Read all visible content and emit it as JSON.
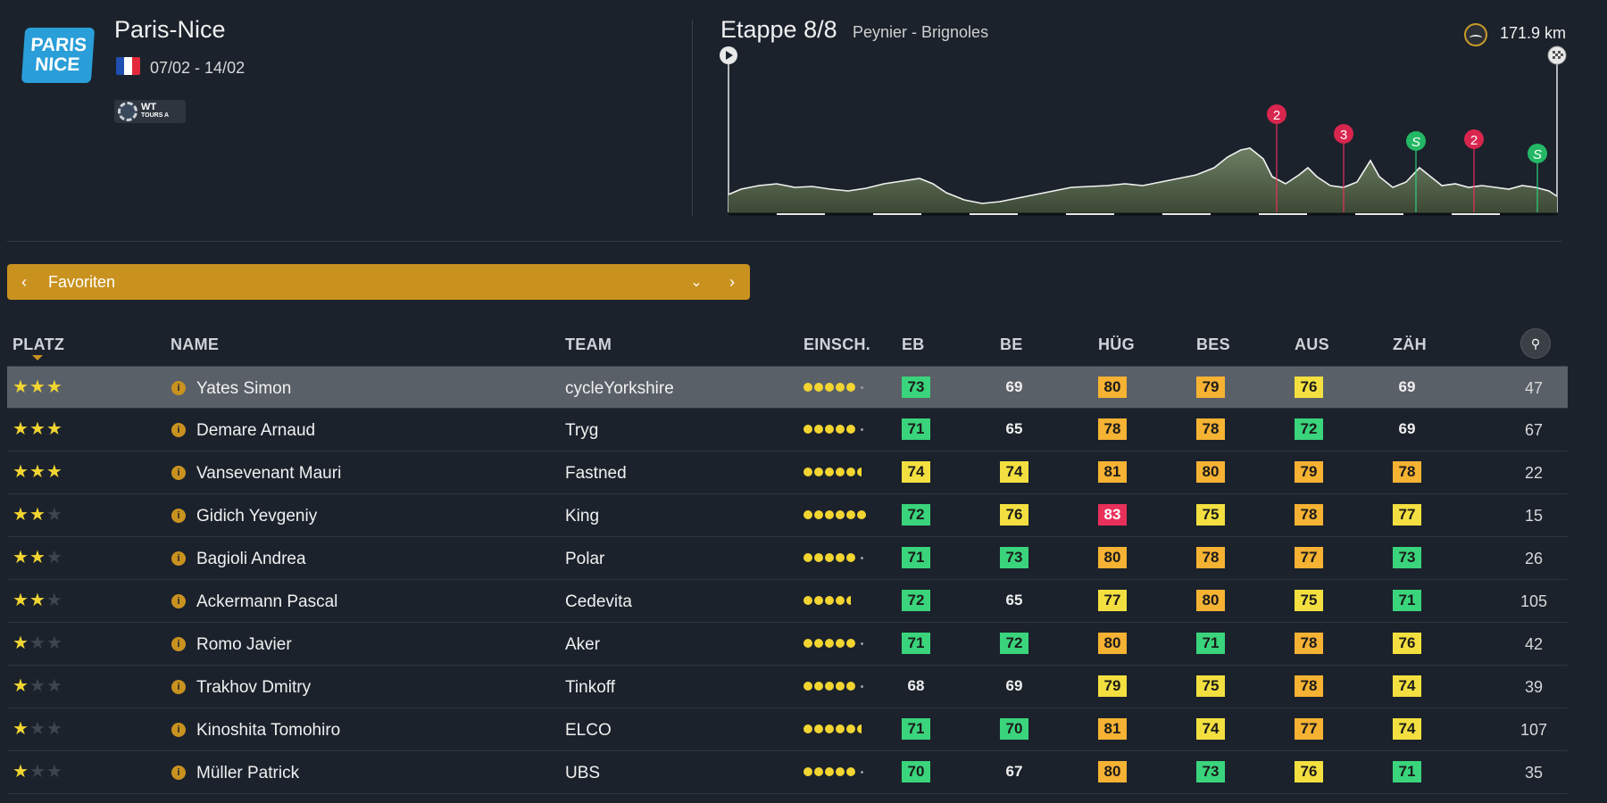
{
  "race": {
    "logo_line1": "PARIS",
    "logo_line2": "NICE",
    "title": "Paris-Nice",
    "dates": "07/02 - 14/02",
    "badge_main": "WT",
    "badge_sub": "TOURS A"
  },
  "stage": {
    "title": "Etappe 8/8",
    "route": "Peynier - Brignoles",
    "distance": "171.9 km",
    "markers": [
      {
        "label": "2",
        "type": "climb"
      },
      {
        "label": "3",
        "type": "climb"
      },
      {
        "label": "S",
        "type": "sprint"
      },
      {
        "label": "2",
        "type": "climb"
      },
      {
        "label": "S",
        "type": "sprint"
      }
    ]
  },
  "selector": {
    "prev": "‹",
    "label": "Favoriten",
    "dropdown": "⌄",
    "next": "›"
  },
  "columns": {
    "platz": "PLATZ",
    "name": "NAME",
    "team": "TEAM",
    "einsch": "EINSCH.",
    "eb": "EB",
    "be": "BE",
    "hug": "HÜG",
    "bes": "BES",
    "aus": "AUS",
    "zah": "ZÄH"
  },
  "colors": {
    "accent": "#c9921f",
    "green": "#3ad47c",
    "yellow": "#f3e040",
    "orange": "#f5b233",
    "red": "#e8305a"
  },
  "riders": [
    {
      "stars": 3,
      "name": "Yates Simon",
      "team": "cycleYorkshire",
      "dots": 5,
      "half": false,
      "stats": [
        {
          "v": "73",
          "c": "green"
        },
        {
          "v": "69",
          "c": "plain"
        },
        {
          "v": "80",
          "c": "orange"
        },
        {
          "v": "79",
          "c": "orange"
        },
        {
          "v": "76",
          "c": "yellow"
        },
        {
          "v": "69",
          "c": "plain"
        }
      ],
      "fav": "47"
    },
    {
      "stars": 3,
      "name": "Demare Arnaud",
      "team": "Tryg",
      "dots": 5,
      "half": false,
      "stats": [
        {
          "v": "71",
          "c": "green"
        },
        {
          "v": "65",
          "c": "plain"
        },
        {
          "v": "78",
          "c": "orange"
        },
        {
          "v": "78",
          "c": "orange"
        },
        {
          "v": "72",
          "c": "green"
        },
        {
          "v": "69",
          "c": "plain"
        }
      ],
      "fav": "67"
    },
    {
      "stars": 3,
      "name": "Vansevenant Mauri",
      "team": "Fastned",
      "dots": 5,
      "half": true,
      "stats": [
        {
          "v": "74",
          "c": "yellow"
        },
        {
          "v": "74",
          "c": "yellow"
        },
        {
          "v": "81",
          "c": "orange"
        },
        {
          "v": "80",
          "c": "orange"
        },
        {
          "v": "79",
          "c": "orange"
        },
        {
          "v": "78",
          "c": "orange"
        }
      ],
      "fav": "22"
    },
    {
      "stars": 2,
      "name": "Gidich Yevgeniy",
      "team": "King",
      "dots": 6,
      "half": false,
      "stats": [
        {
          "v": "72",
          "c": "green"
        },
        {
          "v": "76",
          "c": "yellow"
        },
        {
          "v": "83",
          "c": "red"
        },
        {
          "v": "75",
          "c": "yellow"
        },
        {
          "v": "78",
          "c": "orange"
        },
        {
          "v": "77",
          "c": "yellow"
        }
      ],
      "fav": "15"
    },
    {
      "stars": 2,
      "name": "Bagioli Andrea",
      "team": "Polar",
      "dots": 5,
      "half": false,
      "stats": [
        {
          "v": "71",
          "c": "green"
        },
        {
          "v": "73",
          "c": "green"
        },
        {
          "v": "80",
          "c": "orange"
        },
        {
          "v": "78",
          "c": "orange"
        },
        {
          "v": "77",
          "c": "orange"
        },
        {
          "v": "73",
          "c": "green"
        }
      ],
      "fav": "26"
    },
    {
      "stars": 2,
      "name": "Ackermann Pascal",
      "team": "Cedevita",
      "dots": 4,
      "half": true,
      "stats": [
        {
          "v": "72",
          "c": "green"
        },
        {
          "v": "65",
          "c": "plain"
        },
        {
          "v": "77",
          "c": "yellow"
        },
        {
          "v": "80",
          "c": "orange"
        },
        {
          "v": "75",
          "c": "yellow"
        },
        {
          "v": "71",
          "c": "green"
        }
      ],
      "fav": "105"
    },
    {
      "stars": 1,
      "name": "Romo Javier",
      "team": "Aker",
      "dots": 5,
      "half": false,
      "stats": [
        {
          "v": "71",
          "c": "green"
        },
        {
          "v": "72",
          "c": "green"
        },
        {
          "v": "80",
          "c": "orange"
        },
        {
          "v": "71",
          "c": "green"
        },
        {
          "v": "78",
          "c": "orange"
        },
        {
          "v": "76",
          "c": "yellow"
        }
      ],
      "fav": "42"
    },
    {
      "stars": 1,
      "name": "Trakhov Dmitry",
      "team": "Tinkoff",
      "dots": 5,
      "half": false,
      "stats": [
        {
          "v": "68",
          "c": "plain"
        },
        {
          "v": "69",
          "c": "plain"
        },
        {
          "v": "79",
          "c": "yellow"
        },
        {
          "v": "75",
          "c": "yellow"
        },
        {
          "v": "78",
          "c": "orange"
        },
        {
          "v": "74",
          "c": "yellow"
        }
      ],
      "fav": "39"
    },
    {
      "stars": 1,
      "name": "Kinoshita Tomohiro",
      "team": "ELCO",
      "dots": 5,
      "half": true,
      "stats": [
        {
          "v": "71",
          "c": "green"
        },
        {
          "v": "70",
          "c": "green"
        },
        {
          "v": "81",
          "c": "orange"
        },
        {
          "v": "74",
          "c": "yellow"
        },
        {
          "v": "77",
          "c": "orange"
        },
        {
          "v": "74",
          "c": "yellow"
        }
      ],
      "fav": "107"
    },
    {
      "stars": 1,
      "name": "Müller Patrick",
      "team": "UBS",
      "dots": 5,
      "half": false,
      "stats": [
        {
          "v": "70",
          "c": "green"
        },
        {
          "v": "67",
          "c": "plain"
        },
        {
          "v": "80",
          "c": "orange"
        },
        {
          "v": "73",
          "c": "green"
        },
        {
          "v": "76",
          "c": "yellow"
        },
        {
          "v": "71",
          "c": "green"
        }
      ],
      "fav": "35"
    }
  ]
}
